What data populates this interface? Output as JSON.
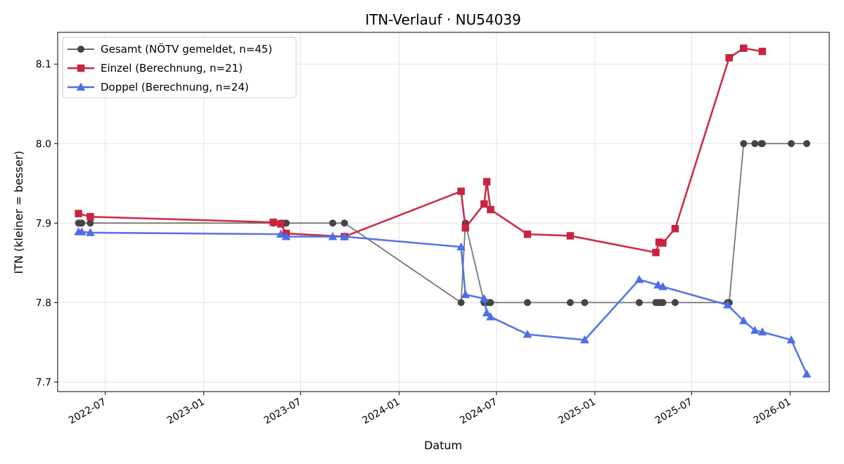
{
  "chart_data": {
    "type": "line",
    "title": "ITN-Verlauf · NU54039",
    "xlabel": "Datum",
    "ylabel": "ITN  (kleiner = besser)",
    "xlim": [
      "2022-04-03",
      "2026-03-15"
    ],
    "ylim": [
      7.688,
      8.14
    ],
    "x_ticks": [
      {
        "date": "2022-07-01",
        "label": "2022-07"
      },
      {
        "date": "2023-01-01",
        "label": "2023-01"
      },
      {
        "date": "2023-07-01",
        "label": "2023-07"
      },
      {
        "date": "2024-01-01",
        "label": "2024-01"
      },
      {
        "date": "2024-07-01",
        "label": "2024-07"
      },
      {
        "date": "2025-01-01",
        "label": "2025-01"
      },
      {
        "date": "2025-07-01",
        "label": "2025-07"
      },
      {
        "date": "2026-01-01",
        "label": "2026-01"
      }
    ],
    "y_ticks": [
      {
        "value": 7.7,
        "label": "7.7"
      },
      {
        "value": 7.8,
        "label": "7.8"
      },
      {
        "value": 7.9,
        "label": "7.9"
      },
      {
        "value": 8.0,
        "label": "8.0"
      },
      {
        "value": 8.1,
        "label": "8.1"
      }
    ],
    "grid": true,
    "legend_position": "top-left",
    "series": [
      {
        "name": "Gesamt (NÖTV gemeldet, n=45)",
        "color": "#555555",
        "marker": "circle",
        "points": [
          {
            "x": "2022-05-12",
            "y": 7.9
          },
          {
            "x": "2022-05-15",
            "y": 7.9
          },
          {
            "x": "2022-05-18",
            "y": 7.9
          },
          {
            "x": "2022-06-03",
            "y": 7.9
          },
          {
            "x": "2023-05-11",
            "y": 7.9
          },
          {
            "x": "2023-05-25",
            "y": 7.9
          },
          {
            "x": "2023-05-29",
            "y": 7.9
          },
          {
            "x": "2023-06-04",
            "y": 7.9
          },
          {
            "x": "2023-08-30",
            "y": 7.9
          },
          {
            "x": "2023-09-21",
            "y": 7.9
          },
          {
            "x": "2024-04-26",
            "y": 7.8
          },
          {
            "x": "2024-05-04",
            "y": 7.9
          },
          {
            "x": "2024-06-08",
            "y": 7.8
          },
          {
            "x": "2024-06-13",
            "y": 7.8
          },
          {
            "x": "2024-06-18",
            "y": 7.8
          },
          {
            "x": "2024-06-20",
            "y": 7.8
          },
          {
            "x": "2024-08-28",
            "y": 7.8
          },
          {
            "x": "2024-11-16",
            "y": 7.8
          },
          {
            "x": "2024-12-13",
            "y": 7.8
          },
          {
            "x": "2025-03-25",
            "y": 7.8
          },
          {
            "x": "2025-04-25",
            "y": 7.8
          },
          {
            "x": "2025-04-29",
            "y": 7.8
          },
          {
            "x": "2025-05-04",
            "y": 7.8
          },
          {
            "x": "2025-05-08",
            "y": 7.8
          },
          {
            "x": "2025-05-31",
            "y": 7.8
          },
          {
            "x": "2025-09-06",
            "y": 7.8
          },
          {
            "x": "2025-09-09",
            "y": 7.8
          },
          {
            "x": "2025-10-06",
            "y": 8.0
          },
          {
            "x": "2025-10-27",
            "y": 8.0
          },
          {
            "x": "2025-11-08",
            "y": 8.0
          },
          {
            "x": "2025-11-10",
            "y": 8.0
          },
          {
            "x": "2026-01-03",
            "y": 8.0
          },
          {
            "x": "2026-02-01",
            "y": 8.0
          }
        ]
      },
      {
        "name": "Einzel (Berechnung, n=21)",
        "color": "#c8233f",
        "marker": "square",
        "points": [
          {
            "x": "2022-05-12",
            "y": 7.912
          },
          {
            "x": "2022-06-03",
            "y": 7.908
          },
          {
            "x": "2023-05-11",
            "y": 7.901
          },
          {
            "x": "2023-05-25",
            "y": 7.899
          },
          {
            "x": "2023-06-04",
            "y": 7.887
          },
          {
            "x": "2023-09-21",
            "y": 7.883
          },
          {
            "x": "2024-04-26",
            "y": 7.94
          },
          {
            "x": "2024-05-04",
            "y": 7.894
          },
          {
            "x": "2024-06-08",
            "y": 7.924
          },
          {
            "x": "2024-06-13",
            "y": 7.952
          },
          {
            "x": "2024-06-20",
            "y": 7.917
          },
          {
            "x": "2024-08-28",
            "y": 7.886
          },
          {
            "x": "2024-11-16",
            "y": 7.884
          },
          {
            "x": "2025-04-25",
            "y": 7.863
          },
          {
            "x": "2025-05-01",
            "y": 7.876
          },
          {
            "x": "2025-05-08",
            "y": 7.875
          },
          {
            "x": "2025-05-31",
            "y": 7.893
          },
          {
            "x": "2025-09-09",
            "y": 8.108
          },
          {
            "x": "2025-10-06",
            "y": 8.12
          },
          {
            "x": "2025-11-10",
            "y": 8.116
          }
        ]
      },
      {
        "name": "Doppel (Berechnung, n=24)",
        "color": "#4e6ee8",
        "marker": "triangle",
        "points": [
          {
            "x": "2022-05-12",
            "y": 7.889
          },
          {
            "x": "2022-05-18",
            "y": 7.889
          },
          {
            "x": "2022-06-03",
            "y": 7.888
          },
          {
            "x": "2023-05-25",
            "y": 7.886
          },
          {
            "x": "2023-06-04",
            "y": 7.883
          },
          {
            "x": "2023-08-30",
            "y": 7.883
          },
          {
            "x": "2023-09-21",
            "y": 7.883
          },
          {
            "x": "2024-04-26",
            "y": 7.87
          },
          {
            "x": "2024-05-04",
            "y": 7.81
          },
          {
            "x": "2024-06-08",
            "y": 7.805
          },
          {
            "x": "2024-06-13",
            "y": 7.787
          },
          {
            "x": "2024-06-20",
            "y": 7.782
          },
          {
            "x": "2024-08-28",
            "y": 7.76
          },
          {
            "x": "2024-12-13",
            "y": 7.753
          },
          {
            "x": "2025-03-25",
            "y": 7.829
          },
          {
            "x": "2025-04-29",
            "y": 7.822
          },
          {
            "x": "2025-05-08",
            "y": 7.82
          },
          {
            "x": "2025-09-06",
            "y": 7.797
          },
          {
            "x": "2025-10-06",
            "y": 7.777
          },
          {
            "x": "2025-10-27",
            "y": 7.765
          },
          {
            "x": "2025-11-10",
            "y": 7.763
          },
          {
            "x": "2026-01-03",
            "y": 7.753
          },
          {
            "x": "2026-02-01",
            "y": 7.71
          }
        ]
      }
    ]
  }
}
